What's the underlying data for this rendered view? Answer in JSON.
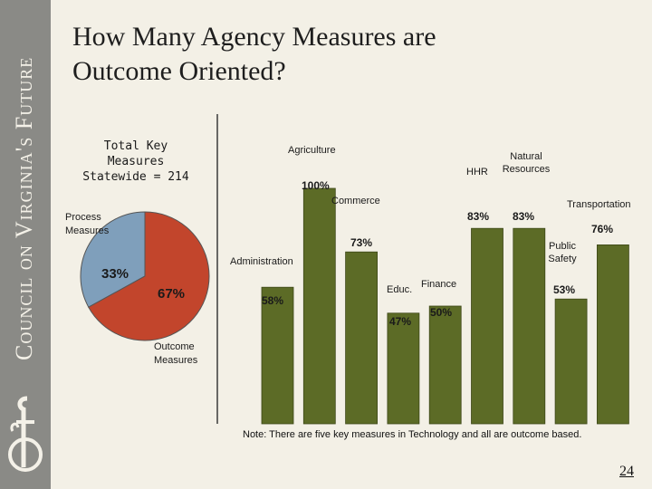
{
  "sidebar": {
    "text": "Council on Virginia's Future"
  },
  "slide": {
    "title": "How Many Agency Measures are\nOutcome Oriented?",
    "total_label": "Total Key\nMeasures\nStatewide = 214",
    "note": "Note: There are five key measures in Technology and all are outcome based.",
    "page_number": "24"
  },
  "chart_data": [
    {
      "type": "pie",
      "slices": [
        {
          "label": "Process Measures",
          "value": 33,
          "value_label": "33%",
          "color": "#7f9fbb"
        },
        {
          "label": "Outcome Measures",
          "value": 67,
          "value_label": "67%",
          "color": "#c2452c"
        }
      ]
    },
    {
      "type": "bar",
      "color": "#5c6b26",
      "ylim": [
        0,
        100
      ],
      "bars": [
        {
          "category": "Administration",
          "value": 58,
          "value_label": "58%"
        },
        {
          "category": "Agriculture",
          "value": 100,
          "value_label": "100%"
        },
        {
          "category": "Commerce",
          "value": 73,
          "value_label": "73%"
        },
        {
          "category": "Educ.",
          "value": 47,
          "value_label": "47%"
        },
        {
          "category": "Finance",
          "value": 50,
          "value_label": "50%"
        },
        {
          "category": "HHR",
          "value": 83,
          "value_label": "83%"
        },
        {
          "category": "Natural Resources",
          "value": 83,
          "value_label": "83%"
        },
        {
          "category": "Public Safety",
          "value": 53,
          "value_label": "53%"
        },
        {
          "category": "Transportation",
          "value": 76,
          "value_label": "76%"
        }
      ]
    }
  ],
  "colors": {
    "bar": "#5c6b26",
    "background": "#f3f0e6",
    "sidebar": "#8a8a86"
  }
}
